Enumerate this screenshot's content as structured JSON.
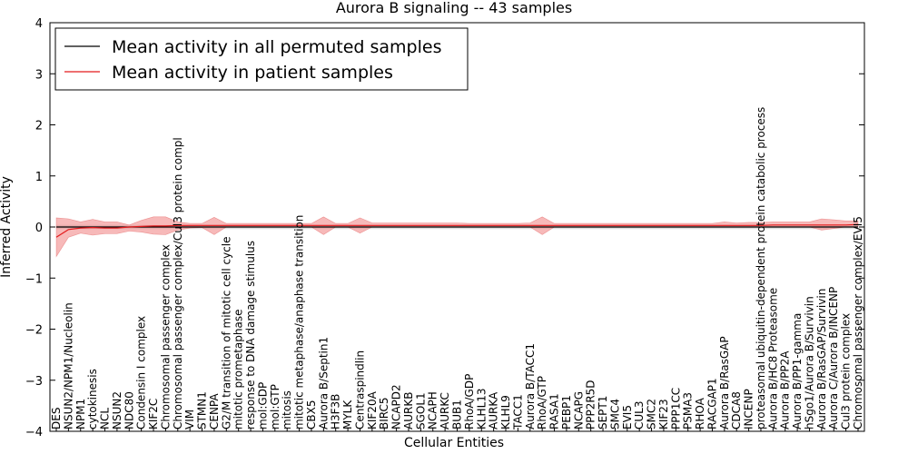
{
  "chart_data": {
    "type": "line",
    "title": "Aurora B signaling -- 43 samples",
    "xlabel": "Cellular Entities",
    "ylabel": "Inferred Activity",
    "ylim": [
      -4,
      4
    ],
    "yticks": [
      "4",
      "3",
      "2",
      "1",
      "0",
      "−1",
      "−2",
      "−3",
      "−4"
    ],
    "ytick_values": [
      4,
      3,
      2,
      1,
      0,
      -1,
      -2,
      -3,
      -4
    ],
    "grid": false,
    "legend_position": "top-left",
    "colors": {
      "permuted": "#000000",
      "patient": "#e31a1c",
      "band": "#f08080"
    },
    "categories": [
      "DES",
      "NSUN2/NPM1/Nucleolin",
      "NPM1",
      "cytokinesis",
      "NCL",
      "NSUN2",
      "NDC80",
      "Condensin I complex",
      "KIF2C",
      "Chromosomal passenger complex",
      "Chromosomal passenger complex/Cul3 protein compl",
      "VIM",
      "STMN1",
      "CENPA",
      "G2/M transition of mitotic cell cycle",
      "mitotic prometaphase",
      "response to DNA damage stimulus",
      "mol:GDP",
      "mol:GTP",
      "mitosis",
      "mitotic metaphase/anaphase transition",
      "CBX5",
      "Aurora B/Septin1",
      "H3F3B",
      "MYLK",
      "Centraspindlin",
      "KIF20A",
      "BIRC5",
      "NCAPD2",
      "AURKB",
      "SGOL1",
      "NCAPH",
      "AURKC",
      "BUB1",
      "RhoA/GDP",
      "KLHL13",
      "AURKA",
      "KLHL9",
      "TACC1",
      "Aurora B/TACC1",
      "RhoA/GTP",
      "RASA1",
      "PEBP1",
      "NCAPG",
      "PPP2R5D",
      "SEPT1",
      "SMC4",
      "EVI5",
      "CUL3",
      "SMC2",
      "KIF23",
      "PPP1CC",
      "PSMA3",
      "RHOA",
      "RACGAP1",
      "Aurora B/RasGAP",
      "CDCA8",
      "INCENP",
      "proteasomal ubiquitin-dependent protein catabolic process",
      "Aurora B/HC8 Proteasome",
      "Aurora B/PP2A",
      "Aurora B/PP1-gamma",
      "hSgo1/Aurora B/Survivin",
      "Aurora B/RasGAP/Survivin",
      "Aurora C/Aurora B/INCENP",
      "Cul3 protein complex",
      "Chromosomal passenger complex/EVI5"
    ],
    "series": [
      {
        "name": "Mean activity in all permuted samples",
        "values": [
          0,
          0,
          0,
          0,
          0,
          0,
          0,
          0,
          0,
          0,
          0,
          0,
          0,
          0,
          0,
          0,
          0,
          0,
          0,
          0,
          0,
          0,
          0,
          0,
          0,
          0,
          0,
          0,
          0,
          0,
          0,
          0,
          0,
          0,
          0,
          0,
          0,
          0,
          0,
          0,
          0,
          0,
          0,
          0,
          0,
          0,
          0,
          0,
          0,
          0,
          0,
          0,
          0,
          0,
          0,
          0,
          0,
          0,
          0,
          0,
          0,
          0,
          0,
          0,
          0,
          0,
          0
        ],
        "lower": [
          -0.04,
          -0.04,
          -0.04,
          -0.04,
          -0.04,
          -0.04,
          -0.04,
          -0.04,
          -0.04,
          -0.04,
          -0.04,
          -0.04,
          -0.04,
          -0.04,
          -0.04,
          -0.04,
          -0.04,
          -0.04,
          -0.04,
          -0.04,
          -0.04,
          -0.04,
          -0.04,
          -0.04,
          -0.04,
          -0.04,
          -0.04,
          -0.04,
          -0.04,
          -0.04,
          -0.04,
          -0.04,
          -0.04,
          -0.04,
          -0.04,
          -0.04,
          -0.04,
          -0.04,
          -0.04,
          -0.04,
          -0.04,
          -0.04,
          -0.04,
          -0.04,
          -0.04,
          -0.04,
          -0.04,
          -0.04,
          -0.04,
          -0.04,
          -0.04,
          -0.04,
          -0.04,
          -0.04,
          -0.04,
          -0.04,
          -0.04,
          -0.04,
          -0.04,
          -0.04,
          -0.04,
          -0.04,
          -0.04,
          -0.04,
          -0.04,
          -0.04,
          -0.04
        ],
        "upper": [
          0.04,
          0.04,
          0.04,
          0.04,
          0.04,
          0.04,
          0.04,
          0.04,
          0.04,
          0.04,
          0.04,
          0.04,
          0.04,
          0.04,
          0.04,
          0.04,
          0.04,
          0.04,
          0.04,
          0.04,
          0.04,
          0.04,
          0.04,
          0.04,
          0.04,
          0.04,
          0.04,
          0.04,
          0.04,
          0.04,
          0.04,
          0.04,
          0.04,
          0.04,
          0.04,
          0.04,
          0.04,
          0.04,
          0.04,
          0.04,
          0.04,
          0.04,
          0.04,
          0.04,
          0.04,
          0.04,
          0.04,
          0.04,
          0.04,
          0.04,
          0.04,
          0.04,
          0.04,
          0.04,
          0.04,
          0.04,
          0.04,
          0.04,
          0.04,
          0.04,
          0.04,
          0.04,
          0.04,
          0.04,
          0.04,
          0.04,
          0.04
        ]
      },
      {
        "name": "Mean activity in patient samples",
        "values": [
          -0.2,
          -0.05,
          -0.02,
          -0.01,
          -0.02,
          -0.02,
          0.0,
          0.01,
          0.02,
          0.02,
          0.03,
          0.03,
          0.03,
          0.03,
          0.03,
          0.03,
          0.03,
          0.03,
          0.03,
          0.03,
          0.03,
          0.03,
          0.03,
          0.03,
          0.03,
          0.03,
          0.03,
          0.03,
          0.03,
          0.03,
          0.03,
          0.03,
          0.03,
          0.03,
          0.03,
          0.03,
          0.03,
          0.03,
          0.03,
          0.03,
          0.03,
          0.03,
          0.03,
          0.03,
          0.03,
          0.03,
          0.03,
          0.03,
          0.03,
          0.03,
          0.03,
          0.03,
          0.03,
          0.03,
          0.03,
          0.03,
          0.03,
          0.03,
          0.03,
          0.04,
          0.04,
          0.04,
          0.04,
          0.04,
          0.04,
          0.04,
          0.05
        ],
        "lower": [
          -0.58,
          -0.2,
          -0.12,
          -0.16,
          -0.13,
          -0.13,
          -0.08,
          -0.1,
          -0.14,
          -0.15,
          -0.06,
          -0.02,
          -0.01,
          -0.15,
          0.0,
          0.0,
          0.0,
          0.0,
          0.0,
          0.0,
          0.0,
          0.0,
          -0.15,
          0.0,
          0.0,
          -0.12,
          0.0,
          0.0,
          0.0,
          0.0,
          0.0,
          0.0,
          0.0,
          0.0,
          0.0,
          0.0,
          0.0,
          0.0,
          0.0,
          0.0,
          -0.15,
          0.0,
          0.0,
          0.0,
          0.0,
          0.0,
          0.0,
          0.0,
          0.0,
          0.0,
          0.0,
          0.0,
          0.0,
          0.0,
          0.0,
          0.0,
          0.0,
          0.0,
          0.0,
          0.0,
          0.0,
          0.0,
          0.0,
          -0.06,
          -0.03,
          0.0,
          0.0
        ],
        "upper": [
          0.18,
          0.16,
          0.1,
          0.15,
          0.1,
          0.1,
          0.04,
          0.13,
          0.2,
          0.2,
          0.1,
          0.07,
          0.07,
          0.19,
          0.07,
          0.07,
          0.07,
          0.07,
          0.07,
          0.07,
          0.07,
          0.07,
          0.2,
          0.07,
          0.07,
          0.18,
          0.08,
          0.08,
          0.08,
          0.08,
          0.08,
          0.08,
          0.08,
          0.08,
          0.07,
          0.07,
          0.07,
          0.07,
          0.07,
          0.08,
          0.2,
          0.07,
          0.07,
          0.07,
          0.07,
          0.07,
          0.07,
          0.07,
          0.07,
          0.07,
          0.07,
          0.07,
          0.07,
          0.07,
          0.07,
          0.1,
          0.08,
          0.09,
          0.09,
          0.1,
          0.1,
          0.1,
          0.1,
          0.16,
          0.14,
          0.12,
          0.12
        ]
      }
    ]
  }
}
